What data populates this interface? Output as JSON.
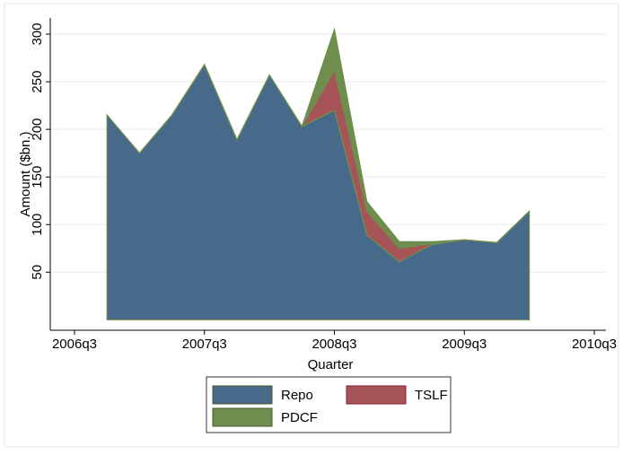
{
  "chart_data": {
    "type": "stacked-area",
    "x_label": "Quarter",
    "y_label": "Amount ($bn.)",
    "x": [
      "2006q4",
      "2007q1",
      "2007q2",
      "2007q3",
      "2007q4",
      "2008q1",
      "2008q2",
      "2008q3",
      "2008q4",
      "2009q1",
      "2009q2",
      "2009q3",
      "2009q4",
      "2010q1"
    ],
    "series": [
      {
        "name": "Repo",
        "color": "#476a8a",
        "values": [
          215,
          175,
          215,
          268,
          189,
          257,
          203,
          220,
          89,
          61,
          79,
          84,
          81,
          114
        ]
      },
      {
        "name": "TSLF",
        "color": "#a65458",
        "values": [
          0,
          0,
          0,
          0,
          0,
          0,
          0,
          42,
          25,
          14,
          1,
          0,
          0,
          0
        ]
      },
      {
        "name": "PDCF",
        "color": "#6f8e4e",
        "values": [
          0,
          0,
          0,
          0,
          0,
          0,
          0,
          43,
          10,
          7,
          2,
          0,
          0,
          0
        ]
      }
    ],
    "xlim": [
      "2006q3",
      "2010q3"
    ],
    "xticks": [
      "2006q3",
      "2007q3",
      "2008q3",
      "2009q3",
      "2010q3"
    ],
    "ylim": [
      -11,
      317
    ],
    "yticks": [
      50,
      100,
      150,
      200,
      250,
      300
    ],
    "grid": true
  }
}
